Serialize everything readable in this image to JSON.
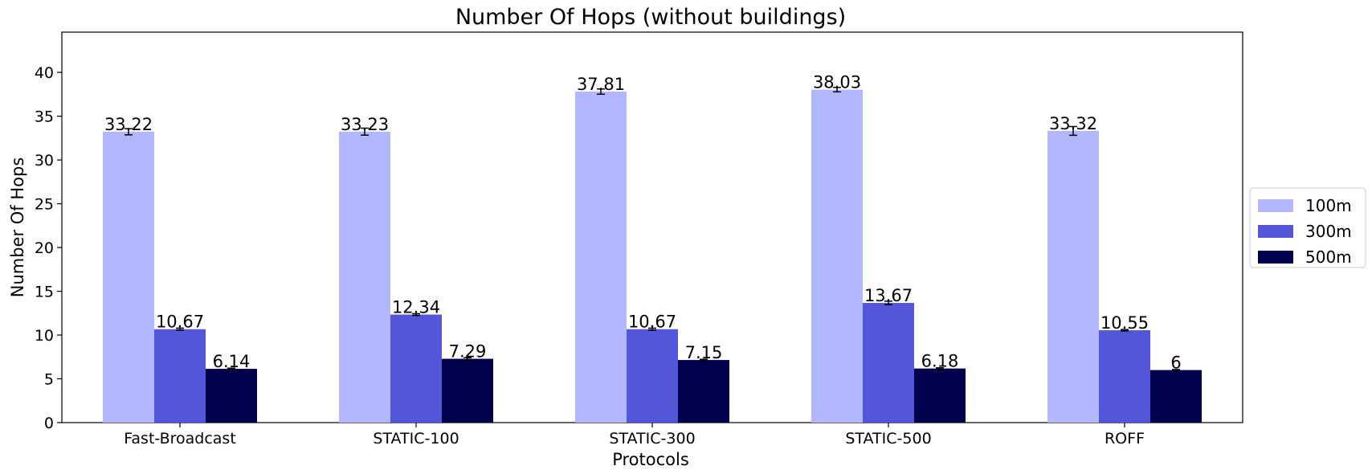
{
  "chart_data": {
    "type": "bar",
    "title": "Number Of Hops (without buildings)",
    "xlabel": "Protocols",
    "ylabel": "Number Of Hops",
    "categories": [
      "Fast-Broadcast",
      "STATIC-100",
      "STATIC-300",
      "STATIC-500",
      "ROFF"
    ],
    "series": [
      {
        "name": "100m",
        "color": "#b3b7ff",
        "values": [
          33.22,
          33.23,
          37.81,
          38.03,
          33.32
        ],
        "labels": [
          "33.22",
          "33.23",
          "37.81",
          "38.03",
          "33.32"
        ],
        "errors": [
          0.35,
          0.4,
          0.3,
          0.25,
          0.5
        ]
      },
      {
        "name": "300m",
        "color": "#5356d8",
        "values": [
          10.67,
          12.34,
          10.67,
          13.67,
          10.55
        ],
        "labels": [
          "10.67",
          "12.34",
          "10.67",
          "13.67",
          "10.55"
        ],
        "errors": [
          0.12,
          0.1,
          0.12,
          0.2,
          0.08
        ]
      },
      {
        "name": "500m",
        "color": "#00004d",
        "values": [
          6.14,
          7.29,
          7.15,
          6.18,
          6.0
        ],
        "labels": [
          "6.14",
          "7.29",
          "7.15",
          "6.18",
          "6"
        ],
        "errors": [
          0.08,
          0.12,
          0.08,
          0.08,
          0.06
        ]
      }
    ],
    "ylim": [
      0,
      44.6
    ],
    "yticks": [
      0,
      5,
      10,
      15,
      20,
      25,
      30,
      35,
      40
    ],
    "grid": false,
    "legend_position": "right"
  }
}
